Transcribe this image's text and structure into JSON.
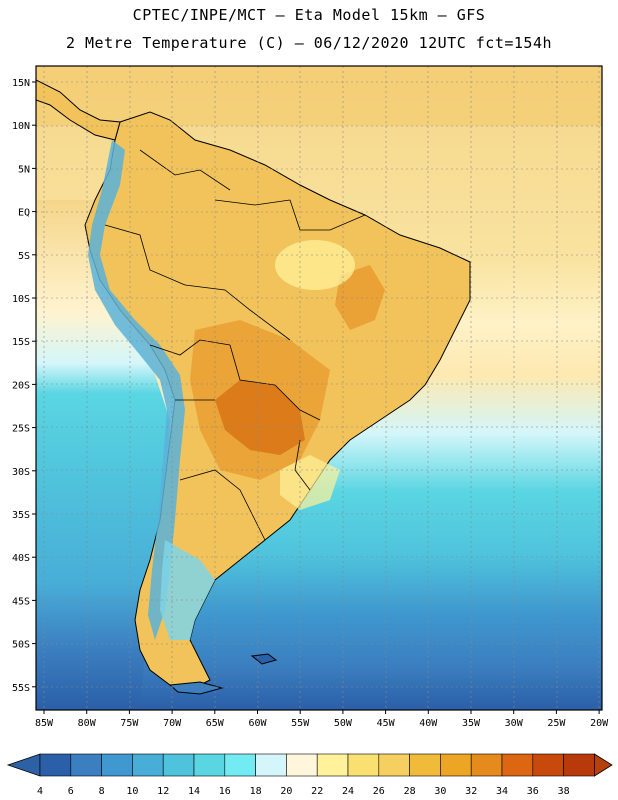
{
  "header": {
    "line1": "CPTEC/INPE/MCT –  Eta Model 15km – GFS",
    "line2": "2 Metre Temperature (C) – 06/12/2020 12UTC fct=154h"
  },
  "axes": {
    "lat_labels": [
      "15N",
      "10N",
      "5N",
      "EQ",
      "5S",
      "10S",
      "15S",
      "20S",
      "25S",
      "30S",
      "35S",
      "40S",
      "45S",
      "50S",
      "55S"
    ],
    "lon_labels": [
      "85W",
      "80W",
      "75W",
      "70W",
      "65W",
      "60W",
      "55W",
      "50W",
      "45W",
      "40W",
      "35W",
      "30W",
      "25W",
      "20W"
    ]
  },
  "colorbar": {
    "ticks": [
      "4",
      "6",
      "8",
      "10",
      "12",
      "14",
      "16",
      "18",
      "20",
      "22",
      "24",
      "26",
      "28",
      "30",
      "32",
      "34",
      "36",
      "38"
    ],
    "colors": [
      "#2b5fa8",
      "#3b7fc0",
      "#3f98cf",
      "#48aed8",
      "#4fc3dc",
      "#5ad6e2",
      "#72ecf2",
      "#d4f6fa",
      "#fff6dc",
      "#fff29a",
      "#f9e070",
      "#f5d060",
      "#f0bb3a",
      "#eca524",
      "#e58a1c",
      "#dc6612",
      "#c74a0c",
      "#b83a0a"
    ]
  },
  "legend": {
    "low_color": "#2d61a6",
    "high_color": "#b8400c"
  }
}
